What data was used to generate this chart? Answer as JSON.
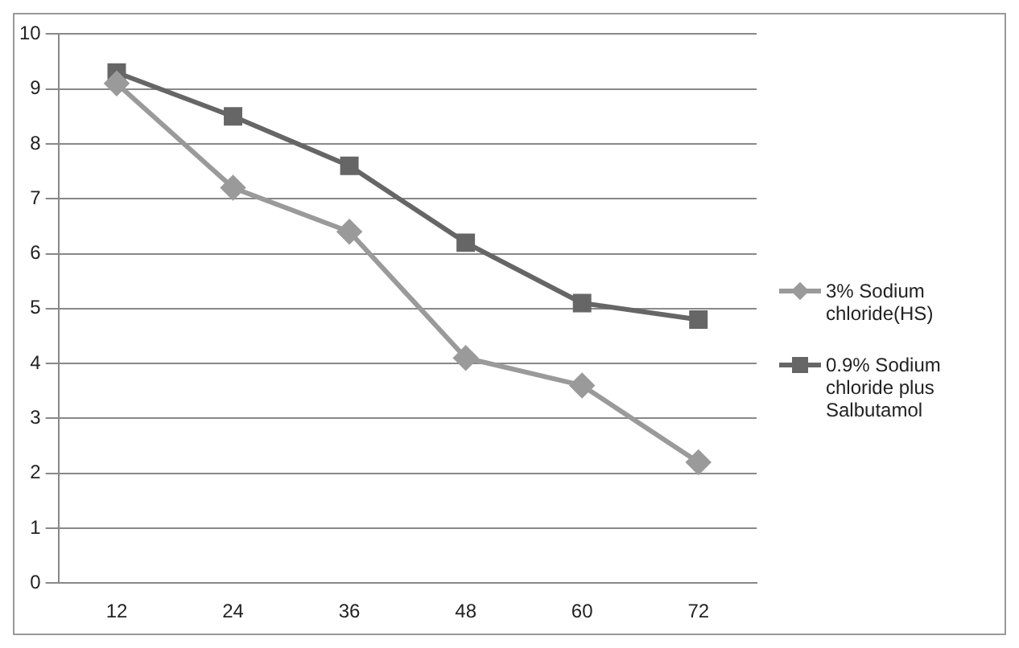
{
  "chart_data": {
    "type": "line",
    "categories": [
      "12",
      "24",
      "36",
      "48",
      "60",
      "72"
    ],
    "series": [
      {
        "name": "3% Sodium chloride(HS)",
        "color": "#9a9a9a",
        "marker": "diamond",
        "values": [
          9.1,
          7.2,
          6.4,
          4.1,
          3.6,
          2.2
        ]
      },
      {
        "name": "0.9% Sodium chloride plus Salbutamol",
        "color": "#666666",
        "marker": "square",
        "values": [
          9.3,
          8.5,
          7.6,
          6.2,
          5.1,
          4.8
        ]
      }
    ],
    "ylim": [
      0,
      10
    ],
    "yticks": [
      0,
      1,
      2,
      3,
      4,
      5,
      6,
      7,
      8,
      9,
      10
    ],
    "grid": "y",
    "legend": "right"
  }
}
